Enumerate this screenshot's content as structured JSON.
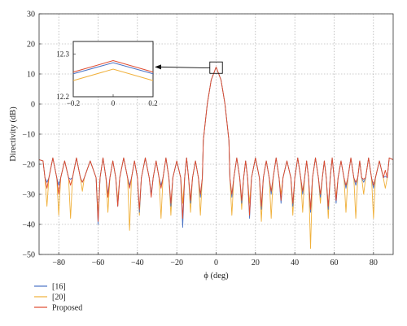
{
  "chart_data": {
    "type": "line",
    "xlabel": "ϕ (deg)",
    "ylabel": "Directivity (dB)",
    "xlim": [
      -90,
      90
    ],
    "ylim": [
      -50,
      30
    ],
    "xticks": [
      -80,
      -60,
      -40,
      -20,
      0,
      20,
      40,
      60,
      80
    ],
    "yticks": [
      -50,
      -40,
      -30,
      -20,
      -10,
      0,
      10,
      20,
      30
    ],
    "grid": true,
    "legend_position": "bottom-left, below plot",
    "series": [
      {
        "name": "[16]",
        "color": "#4a72c4",
        "main_lobe_peak": 12.28,
        "sidelobe_level": -18.5,
        "nulls": [
          {
            "x": -86,
            "y": -26
          },
          {
            "x": -80,
            "y": -27
          },
          {
            "x": -74,
            "y": -25
          },
          {
            "x": -68,
            "y": -26
          },
          {
            "x": -60,
            "y": -40
          },
          {
            "x": -55,
            "y": -30
          },
          {
            "x": -50,
            "y": -34
          },
          {
            "x": -44,
            "y": -27
          },
          {
            "x": -39,
            "y": -36
          },
          {
            "x": -33,
            "y": -30
          },
          {
            "x": -28,
            "y": -27
          },
          {
            "x": -23,
            "y": -34
          },
          {
            "x": -17,
            "y": -41
          },
          {
            "x": -13,
            "y": -33
          },
          {
            "x": -8,
            "y": -31
          },
          {
            "x": 8,
            "y": -31
          },
          {
            "x": 13,
            "y": -33
          },
          {
            "x": 17,
            "y": -38
          },
          {
            "x": 23,
            "y": -35
          },
          {
            "x": 28,
            "y": -30
          },
          {
            "x": 33,
            "y": -33
          },
          {
            "x": 39,
            "y": -34
          },
          {
            "x": 44,
            "y": -30
          },
          {
            "x": 48,
            "y": -36
          },
          {
            "x": 53,
            "y": -31
          },
          {
            "x": 57,
            "y": -35
          },
          {
            "x": 61,
            "y": -33
          },
          {
            "x": 66,
            "y": -28
          },
          {
            "x": 71,
            "y": -27
          },
          {
            "x": 75,
            "y": -26
          },
          {
            "x": 80,
            "y": -28
          },
          {
            "x": 86,
            "y": -24
          }
        ]
      },
      {
        "name": "[20]",
        "color": "#f0b03a",
        "main_lobe_peak": 12.265,
        "sidelobe_level": -18.5,
        "nulls": [
          {
            "x": -86,
            "y": -34
          },
          {
            "x": -80,
            "y": -37
          },
          {
            "x": -74,
            "y": -38
          },
          {
            "x": -68,
            "y": -29
          },
          {
            "x": -60,
            "y": -37
          },
          {
            "x": -55,
            "y": -36
          },
          {
            "x": -50,
            "y": -32
          },
          {
            "x": -44,
            "y": -42
          },
          {
            "x": -39,
            "y": -37
          },
          {
            "x": -33,
            "y": -30
          },
          {
            "x": -28,
            "y": -38
          },
          {
            "x": -23,
            "y": -37
          },
          {
            "x": -17,
            "y": -33
          },
          {
            "x": -13,
            "y": -36
          },
          {
            "x": -8,
            "y": -37
          },
          {
            "x": 8,
            "y": -37
          },
          {
            "x": 13,
            "y": -35
          },
          {
            "x": 17,
            "y": -33
          },
          {
            "x": 23,
            "y": -39
          },
          {
            "x": 28,
            "y": -38
          },
          {
            "x": 33,
            "y": -30
          },
          {
            "x": 39,
            "y": -37
          },
          {
            "x": 44,
            "y": -36
          },
          {
            "x": 48,
            "y": -48
          },
          {
            "x": 53,
            "y": -33
          },
          {
            "x": 57,
            "y": -38
          },
          {
            "x": 61,
            "y": -31
          },
          {
            "x": 66,
            "y": -36
          },
          {
            "x": 71,
            "y": -38
          },
          {
            "x": 75,
            "y": -30
          },
          {
            "x": 80,
            "y": -38
          },
          {
            "x": 86,
            "y": -28
          }
        ]
      },
      {
        "name": "Proposed",
        "color": "#e04a2e",
        "main_lobe_peak": 12.285,
        "sidelobe_level": -18.5,
        "nulls": [
          {
            "x": -86,
            "y": -28
          },
          {
            "x": -80,
            "y": -30
          },
          {
            "x": -74,
            "y": -27
          },
          {
            "x": -68,
            "y": -26
          },
          {
            "x": -60,
            "y": -39
          },
          {
            "x": -55,
            "y": -31
          },
          {
            "x": -50,
            "y": -34
          },
          {
            "x": -44,
            "y": -28
          },
          {
            "x": -39,
            "y": -35
          },
          {
            "x": -33,
            "y": -31
          },
          {
            "x": -28,
            "y": -28
          },
          {
            "x": -23,
            "y": -33
          },
          {
            "x": -17,
            "y": -38
          },
          {
            "x": -13,
            "y": -32
          },
          {
            "x": -8,
            "y": -30
          },
          {
            "x": 8,
            "y": -30
          },
          {
            "x": 13,
            "y": -32
          },
          {
            "x": 17,
            "y": -37
          },
          {
            "x": 23,
            "y": -34
          },
          {
            "x": 28,
            "y": -29
          },
          {
            "x": 33,
            "y": -32
          },
          {
            "x": 39,
            "y": -33
          },
          {
            "x": 44,
            "y": -29
          },
          {
            "x": 48,
            "y": -35
          },
          {
            "x": 53,
            "y": -30
          },
          {
            "x": 57,
            "y": -34
          },
          {
            "x": 61,
            "y": -32
          },
          {
            "x": 66,
            "y": -27
          },
          {
            "x": 71,
            "y": -26
          },
          {
            "x": 75,
            "y": -25
          },
          {
            "x": 80,
            "y": -27
          },
          {
            "x": 86,
            "y": -22
          }
        ]
      }
    ],
    "inset": {
      "xlim": [
        -0.2,
        0.2
      ],
      "ylim": [
        12.2,
        12.33
      ],
      "xticks": [
        -0.2,
        0,
        0.2
      ],
      "xtick_labels": [
        "−0.2",
        "0",
        "0.2"
      ],
      "yticks": [
        12.2,
        12.3
      ],
      "ytick_labels": [
        "12.2",
        "12.3"
      ],
      "series": [
        {
          "name": "[16]",
          "x": [
            -0.2,
            0,
            0.2
          ],
          "y": [
            12.254,
            12.28,
            12.254
          ]
        },
        {
          "name": "[20]",
          "x": [
            -0.2,
            0,
            0.2
          ],
          "y": [
            12.238,
            12.265,
            12.238
          ]
        },
        {
          "name": "Proposed",
          "x": [
            -0.2,
            0,
            0.2
          ],
          "y": [
            12.258,
            12.285,
            12.258
          ]
        }
      ]
    }
  }
}
